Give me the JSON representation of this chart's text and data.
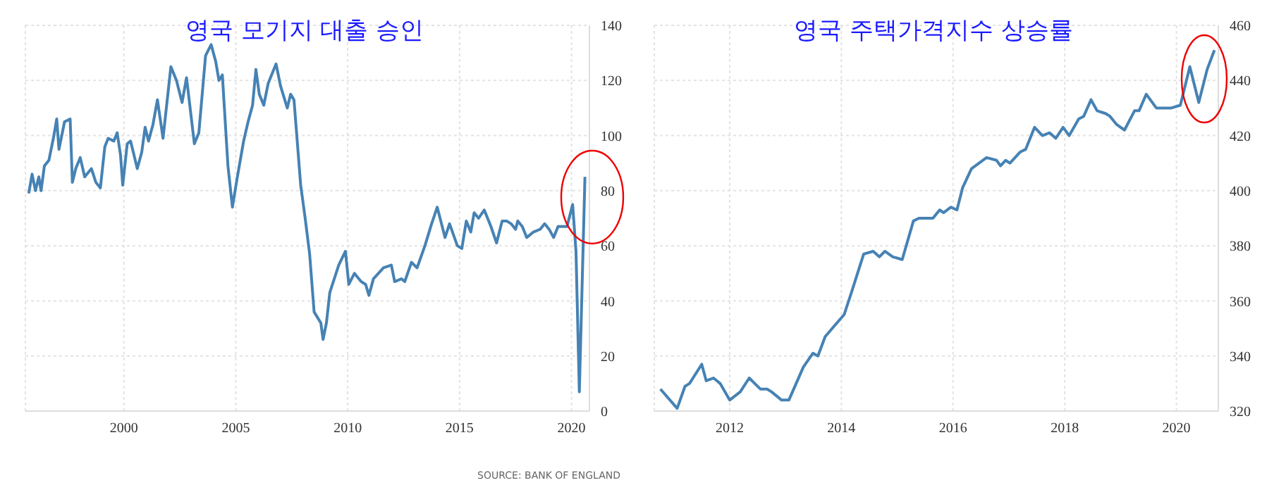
{
  "chart_data": [
    {
      "type": "line",
      "title": "영국 모기지 대출 승인",
      "color": "#4682b4",
      "grid": true,
      "marker": "none",
      "line_style": "solid",
      "xlim": [
        1995.6,
        2020.8
      ],
      "xticks": [
        2000,
        2005,
        2010,
        2015,
        2020
      ],
      "ylim": [
        0,
        140
      ],
      "yticks": [
        0,
        20,
        40,
        60,
        80,
        100,
        120,
        140
      ],
      "annotations": [
        "SOURCE: BANK OF ENGLAND"
      ],
      "x": [
        1995.75,
        1995.9,
        1996.05,
        1996.2,
        1996.3,
        1996.45,
        1996.65,
        1996.85,
        1997.0,
        1997.1,
        1997.35,
        1997.6,
        1997.7,
        1997.85,
        1998.05,
        1998.25,
        1998.55,
        1998.75,
        1998.95,
        1999.15,
        1999.3,
        1999.55,
        1999.7,
        1999.85,
        1999.95,
        2000.15,
        2000.3,
        2000.6,
        2000.8,
        2000.95,
        2001.1,
        2001.3,
        2001.5,
        2001.75,
        2002.1,
        2002.35,
        2002.6,
        2002.8,
        2003.15,
        2003.35,
        2003.65,
        2003.9,
        2004.1,
        2004.25,
        2004.4,
        2004.65,
        2004.85,
        2005.05,
        2005.35,
        2005.55,
        2005.75,
        2005.9,
        2006.05,
        2006.25,
        2006.45,
        2006.8,
        2007.0,
        2007.3,
        2007.45,
        2007.6,
        2007.9,
        2008.1,
        2008.3,
        2008.5,
        2008.8,
        2008.9,
        2009.05,
        2009.2,
        2009.6,
        2009.9,
        2010.05,
        2010.3,
        2010.6,
        2010.8,
        2010.95,
        2011.15,
        2011.6,
        2011.95,
        2012.1,
        2012.4,
        2012.55,
        2012.85,
        2013.1,
        2013.45,
        2013.75,
        2014.0,
        2014.35,
        2014.55,
        2014.9,
        2015.1,
        2015.3,
        2015.5,
        2015.65,
        2015.85,
        2016.1,
        2016.4,
        2016.65,
        2016.9,
        2017.1,
        2017.3,
        2017.5,
        2017.6,
        2017.8,
        2018.0,
        2018.3,
        2018.6,
        2018.8,
        2019.0,
        2019.2,
        2019.4,
        2019.8,
        2020.05,
        2020.2,
        2020.35,
        2020.6
      ],
      "values": [
        79,
        86,
        80,
        85,
        80,
        89,
        91,
        99,
        106,
        95,
        105,
        106,
        83,
        88,
        92,
        85,
        88,
        83,
        81,
        96,
        99,
        98,
        101,
        93,
        82,
        97,
        98,
        88,
        94,
        103,
        98,
        104,
        113,
        99,
        125,
        120,
        112,
        121,
        97,
        101,
        129,
        133,
        127,
        120,
        122,
        89,
        74,
        84,
        98,
        105,
        111,
        124,
        115,
        111,
        119,
        126,
        118,
        110,
        115,
        113,
        82,
        70,
        57,
        36,
        32,
        26,
        32,
        43,
        53,
        58,
        46,
        50,
        47,
        46,
        42,
        48,
        52,
        53,
        47,
        48,
        47,
        54,
        52,
        60,
        68,
        74,
        63,
        68,
        60,
        59,
        69,
        65,
        72,
        70,
        73,
        67,
        61,
        69,
        69,
        68,
        66,
        69,
        67,
        63,
        65,
        66,
        68,
        66,
        63,
        67,
        67,
        75,
        58,
        7,
        85
      ]
    },
    {
      "type": "line",
      "title": "영국 주택가격지수 상승률",
      "color": "#4682b4",
      "grid": true,
      "marker": "none",
      "line_style": "solid",
      "xlim": [
        2010.65,
        2020.75
      ],
      "xticks": [
        2012,
        2014,
        2016,
        2018,
        2020
      ],
      "ylim": [
        320,
        460
      ],
      "yticks": [
        320,
        340,
        360,
        380,
        400,
        420,
        440,
        460
      ],
      "x": [
        2010.76,
        2011.06,
        2011.2,
        2011.28,
        2011.5,
        2011.58,
        2011.71,
        2011.83,
        2012.0,
        2012.19,
        2012.35,
        2012.45,
        2012.55,
        2012.67,
        2012.75,
        2012.93,
        2013.06,
        2013.19,
        2013.32,
        2013.49,
        2013.58,
        2013.71,
        2013.92,
        2014.05,
        2014.18,
        2014.4,
        2014.57,
        2014.68,
        2014.78,
        2014.92,
        2015.09,
        2015.29,
        2015.39,
        2015.52,
        2015.64,
        2015.76,
        2015.83,
        2015.96,
        2016.07,
        2016.17,
        2016.33,
        2016.6,
        2016.78,
        2016.85,
        2016.94,
        2017.02,
        2017.2,
        2017.3,
        2017.46,
        2017.6,
        2017.73,
        2017.84,
        2017.97,
        2018.08,
        2018.25,
        2018.34,
        2018.47,
        2018.58,
        2018.73,
        2018.81,
        2018.93,
        2019.07,
        2019.25,
        2019.33,
        2019.46,
        2019.64,
        2019.81,
        2019.91,
        2020.07,
        2020.24,
        2020.4,
        2020.55,
        2020.68
      ],
      "values": [
        328,
        321,
        329,
        330,
        337,
        331,
        332,
        330,
        324,
        327,
        332,
        330,
        328,
        328,
        327,
        324,
        324,
        330,
        336,
        341,
        340,
        347,
        352,
        355,
        363,
        377,
        378,
        376,
        378,
        376,
        375,
        389,
        390,
        390,
        390,
        393,
        392,
        394,
        393,
        401,
        408,
        412,
        411,
        409,
        411,
        410,
        414,
        415,
        423,
        420,
        421,
        419,
        423,
        420,
        426,
        427,
        433,
        429,
        428,
        427,
        424,
        422,
        429,
        429,
        435,
        430,
        430,
        430,
        431,
        445,
        432,
        444,
        451
      ]
    }
  ]
}
